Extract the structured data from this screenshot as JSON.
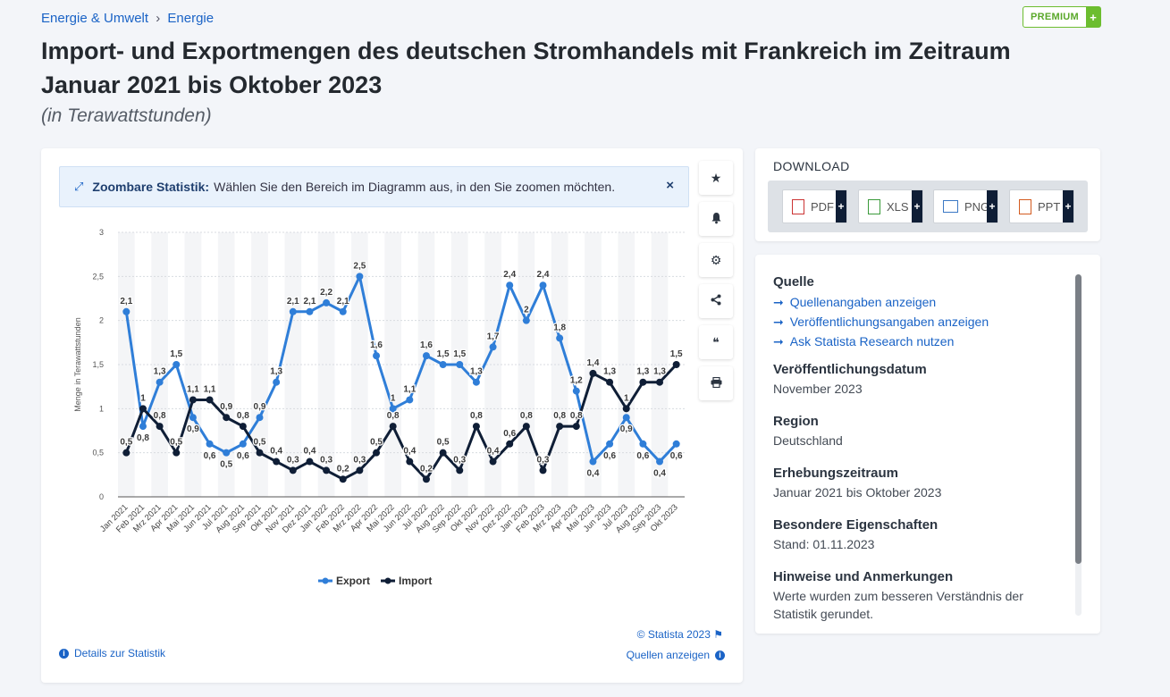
{
  "breadcrumb": {
    "level1": "Energie & Umwelt",
    "separator": "›",
    "level2": "Energie"
  },
  "premium": {
    "label": "PREMIUM",
    "plus": "+"
  },
  "title": "Import- und Exportmengen des deutschen Stromhandels mit Frankreich im Zeitraum Januar 2021 bis Oktober 2023",
  "subtitle": "(in Terawattstunden)",
  "zoom_banner": {
    "bold": "Zoombare Statistik:",
    "text": "Wählen Sie den Bereich im Diagramm aus, in den Sie zoomen möchten.",
    "close": "×"
  },
  "toolbar": [
    {
      "icon": "star-icon",
      "glyph": "★"
    },
    {
      "icon": "bell-icon",
      "glyph": "🔔︎"
    },
    {
      "icon": "gear-icon",
      "glyph": "⚙"
    },
    {
      "icon": "share-icon",
      "glyph": "⋖"
    },
    {
      "icon": "quote-icon",
      "glyph": "❝"
    },
    {
      "icon": "print-icon",
      "glyph": "⎙"
    }
  ],
  "chart_footer": {
    "details": "Details zur Statistik",
    "copyright": "© Statista 2023",
    "sources": "Quellen anzeigen"
  },
  "download": {
    "title": "DOWNLOAD",
    "buttons": [
      {
        "label": "PDF"
      },
      {
        "label": "XLS"
      },
      {
        "label": "PNG"
      },
      {
        "label": "PPT"
      }
    ],
    "plus": "+"
  },
  "colors": {
    "export": "#2f7ed8",
    "import": "#0f1e36",
    "link": "#1a63c6",
    "premium": "#6cbd2f"
  },
  "info": {
    "source_heading": "Quelle",
    "source_links": [
      "Quellenangaben anzeigen",
      "Veröffentlichungsangaben anzeigen",
      "Ask Statista Research nutzen"
    ],
    "link_arrow": "➞",
    "fields": [
      {
        "label": "Veröffentlichungsdatum",
        "value": "November 2023"
      },
      {
        "label": "Region",
        "value": "Deutschland"
      },
      {
        "label": "Erhebungszeitraum",
        "value": "Januar 2021 bis Oktober 2023"
      },
      {
        "label": "Besondere Eigenschaften",
        "value": "Stand: 01.11.2023"
      },
      {
        "label": "Hinweise und Anmerkungen",
        "value": "Werte wurden zum besseren Verständnis der Statistik gerundet."
      }
    ]
  },
  "chart_data": {
    "type": "line",
    "title": "Import- und Exportmengen des deutschen Stromhandels mit Frankreich im Zeitraum Januar 2021 bis Oktober 2023",
    "xlabel": "",
    "ylabel": "Menge in Terawattstunden",
    "ylim": [
      0,
      3
    ],
    "yticks": [
      "0",
      "0,5",
      "1",
      "1,5",
      "2",
      "2,5",
      "3"
    ],
    "grid": true,
    "legend": "bottom-center",
    "categories": [
      "Jan 2021",
      "Feb 2021",
      "Mrz 2021",
      "Apr 2021",
      "Mai 2021",
      "Jun 2021",
      "Jul 2021",
      "Aug 2021",
      "Sep 2021",
      "Okt 2021",
      "Nov 2021",
      "Dez 2021",
      "Jan 2022",
      "Feb 2022",
      "Mrz 2022",
      "Apr 2022",
      "Mai 2022",
      "Jun 2022",
      "Jul 2022",
      "Aug 2022",
      "Sep 2022",
      "Okt 2022",
      "Nov 2022",
      "Dez 2022",
      "Jan 2023",
      "Feb 2023",
      "Mrz 2023",
      "Apr 2023",
      "Mai 2023",
      "Jun 2023",
      "Jul 2023",
      "Aug 2023",
      "Sep 2023",
      "Okt 2023"
    ],
    "series": [
      {
        "name": "Export",
        "values": [
          2.1,
          0.8,
          1.3,
          1.5,
          0.9,
          0.6,
          0.5,
          0.6,
          0.9,
          1.3,
          2.1,
          2.1,
          2.2,
          2.1,
          2.5,
          1.6,
          1.0,
          1.1,
          1.6,
          1.5,
          1.5,
          1.3,
          1.7,
          2.4,
          2.0,
          2.4,
          1.8,
          1.2,
          0.4,
          0.6,
          0.9,
          0.6,
          0.4,
          0.6
        ]
      },
      {
        "name": "Import",
        "values": [
          0.5,
          1.0,
          0.8,
          0.5,
          1.1,
          1.1,
          0.9,
          0.8,
          0.5,
          0.4,
          0.3,
          0.4,
          0.3,
          0.2,
          0.3,
          0.5,
          0.8,
          0.4,
          0.2,
          0.5,
          0.3,
          0.8,
          0.4,
          0.6,
          0.8,
          0.3,
          0.8,
          0.8,
          1.4,
          1.3,
          1.0,
          1.3,
          1.3,
          1.5
        ]
      }
    ]
  }
}
